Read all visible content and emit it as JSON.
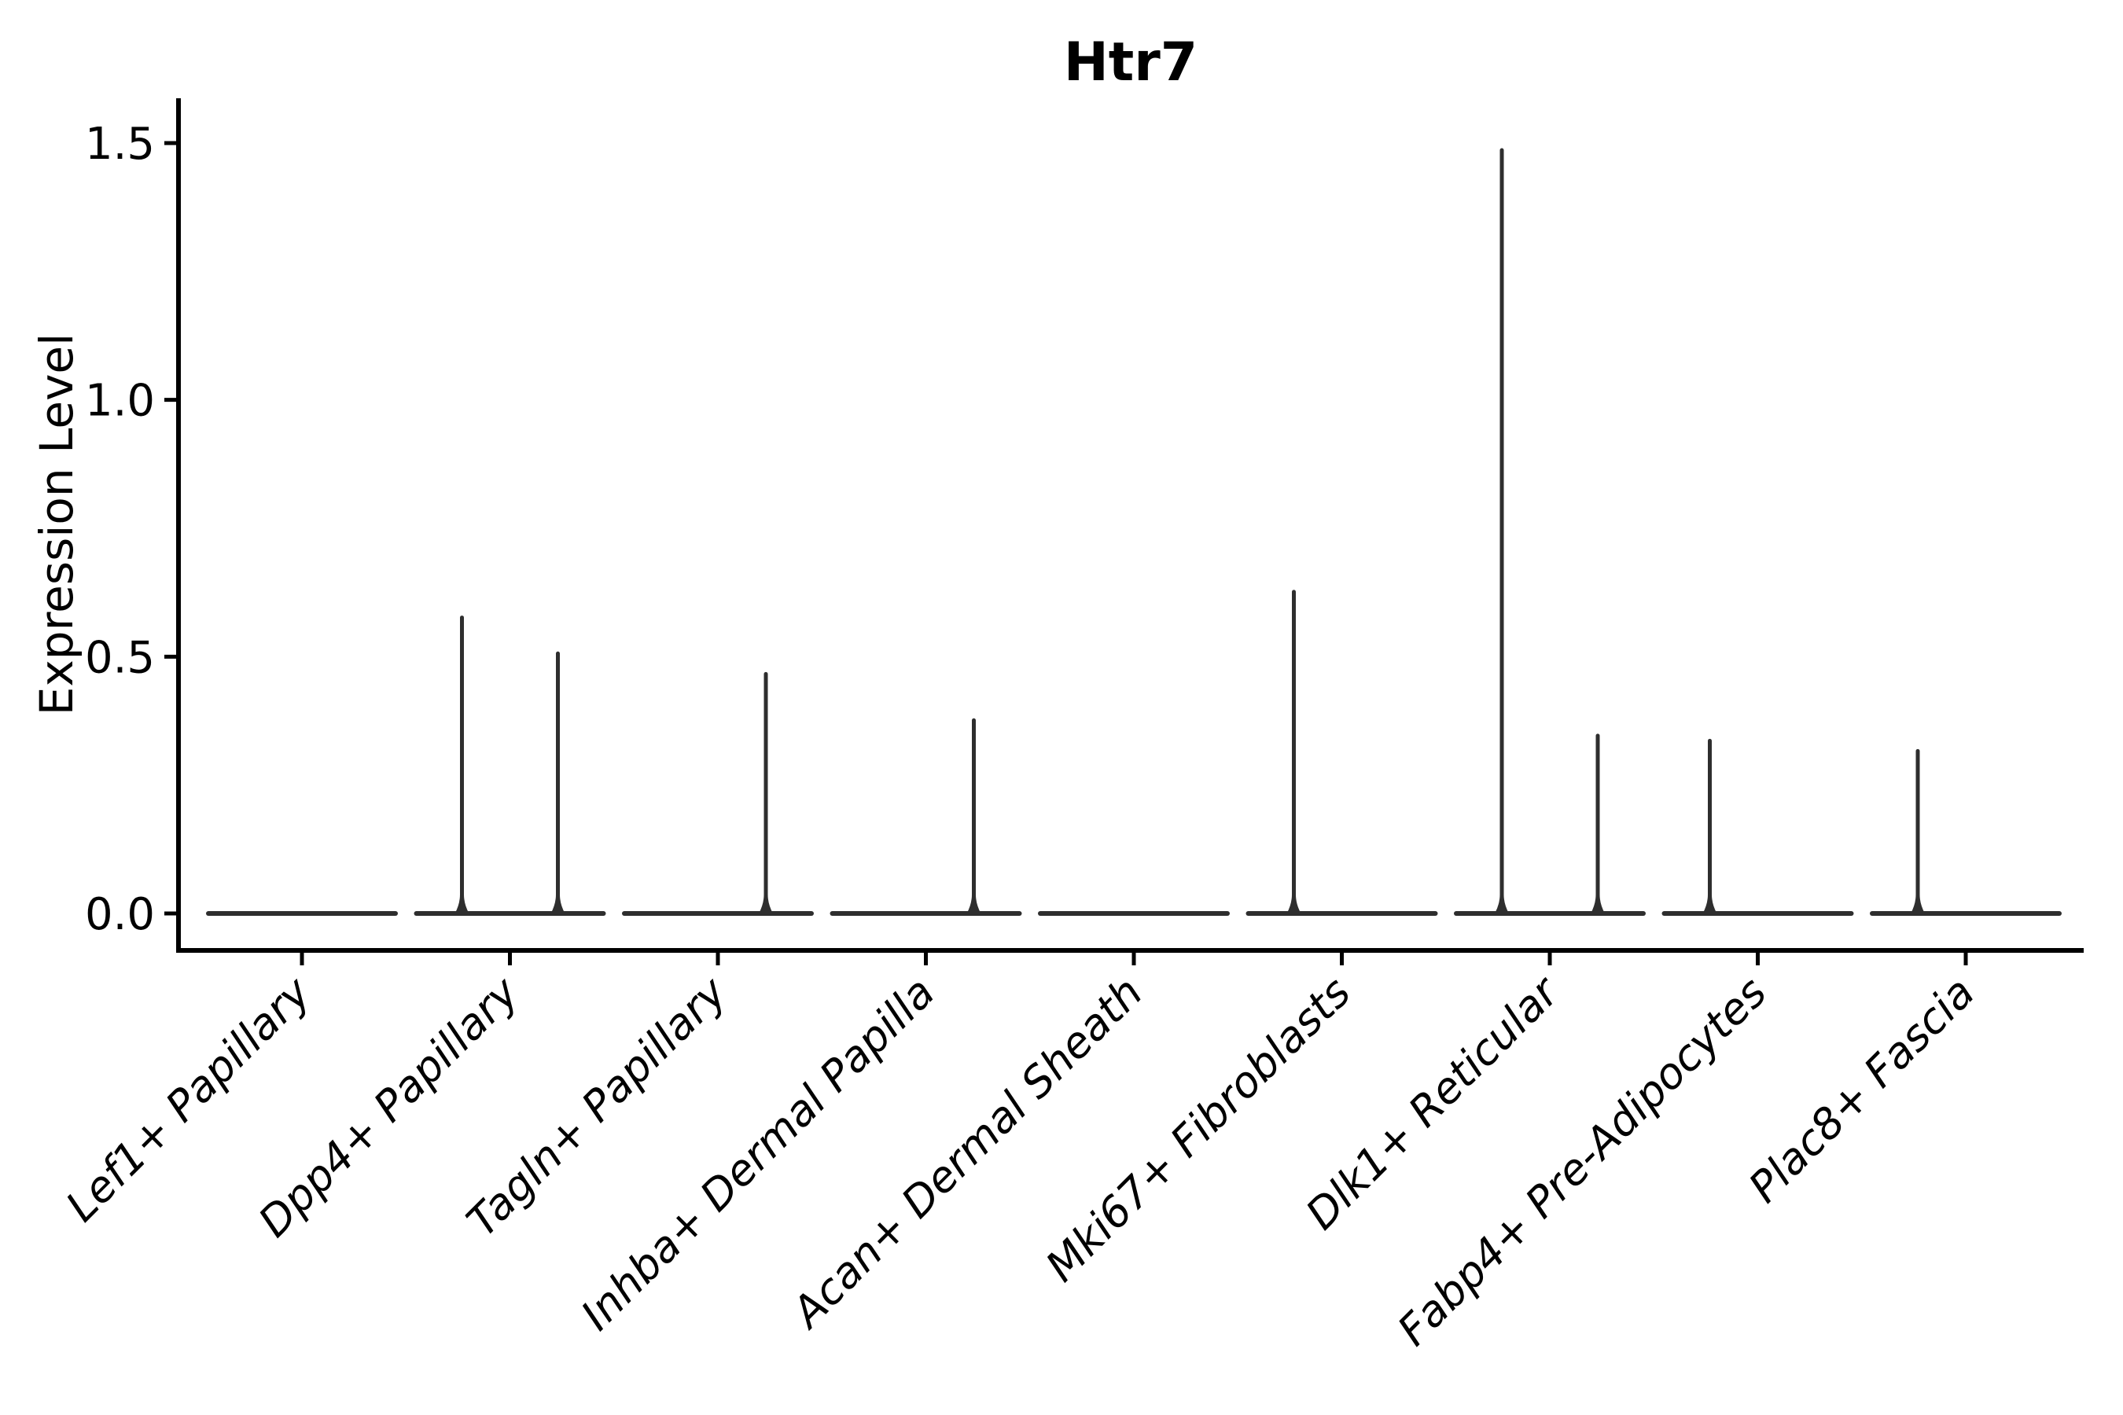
{
  "chart_data": {
    "type": "violin",
    "title": "Htr7",
    "xlabel": "",
    "ylabel": "Expression Level",
    "ylim": [
      0,
      1.5
    ],
    "yticks": [
      0.0,
      0.5,
      1.0,
      1.5
    ],
    "ytick_labels": [
      "0.0",
      "0.5",
      "1.0",
      "1.5"
    ],
    "grid": false,
    "legend": "none",
    "categories": [
      "Lef1+ Papillary",
      "Dpp4+ Papillary",
      "Tagln+ Papillary",
      "Inhba+ Dermal Papilla",
      "Acan+ Dermal Sheath",
      "Mki67+ Fibroblasts",
      "Dlk1+ Reticular",
      "Fabp4+ Pre-Adipocytes",
      "Plac8+ Fascia"
    ],
    "violins": [
      {
        "category": "Lef1+ Papillary",
        "baseline": 0.0,
        "spikes": []
      },
      {
        "category": "Dpp4+ Papillary",
        "baseline": 0.0,
        "spikes": [
          {
            "position": "left",
            "max": 0.58
          },
          {
            "position": "right",
            "max": 0.51
          }
        ]
      },
      {
        "category": "Tagln+ Papillary",
        "baseline": 0.0,
        "spikes": [
          {
            "position": "right",
            "max": 0.47
          }
        ]
      },
      {
        "category": "Inhba+ Dermal Papilla",
        "baseline": 0.0,
        "spikes": [
          {
            "position": "right",
            "max": 0.38
          }
        ]
      },
      {
        "category": "Acan+ Dermal Sheath",
        "baseline": 0.0,
        "spikes": []
      },
      {
        "category": "Mki67+ Fibroblasts",
        "baseline": 0.0,
        "spikes": [
          {
            "position": "left",
            "max": 0.63
          }
        ]
      },
      {
        "category": "Dlk1+ Reticular",
        "baseline": 0.0,
        "spikes": [
          {
            "position": "left",
            "max": 1.49
          },
          {
            "position": "right",
            "max": 0.35
          }
        ]
      },
      {
        "category": "Fabp4+ Pre-Adipocytes",
        "baseline": 0.0,
        "spikes": [
          {
            "position": "left",
            "max": 0.34
          }
        ]
      },
      {
        "category": "Plac8+ Fascia",
        "baseline": 0.0,
        "spikes": [
          {
            "position": "left",
            "max": 0.32
          }
        ]
      }
    ],
    "colors": {
      "violin": "#2e2e2e",
      "axis": "#000000",
      "text": "#000000",
      "background": "#ffffff"
    }
  }
}
